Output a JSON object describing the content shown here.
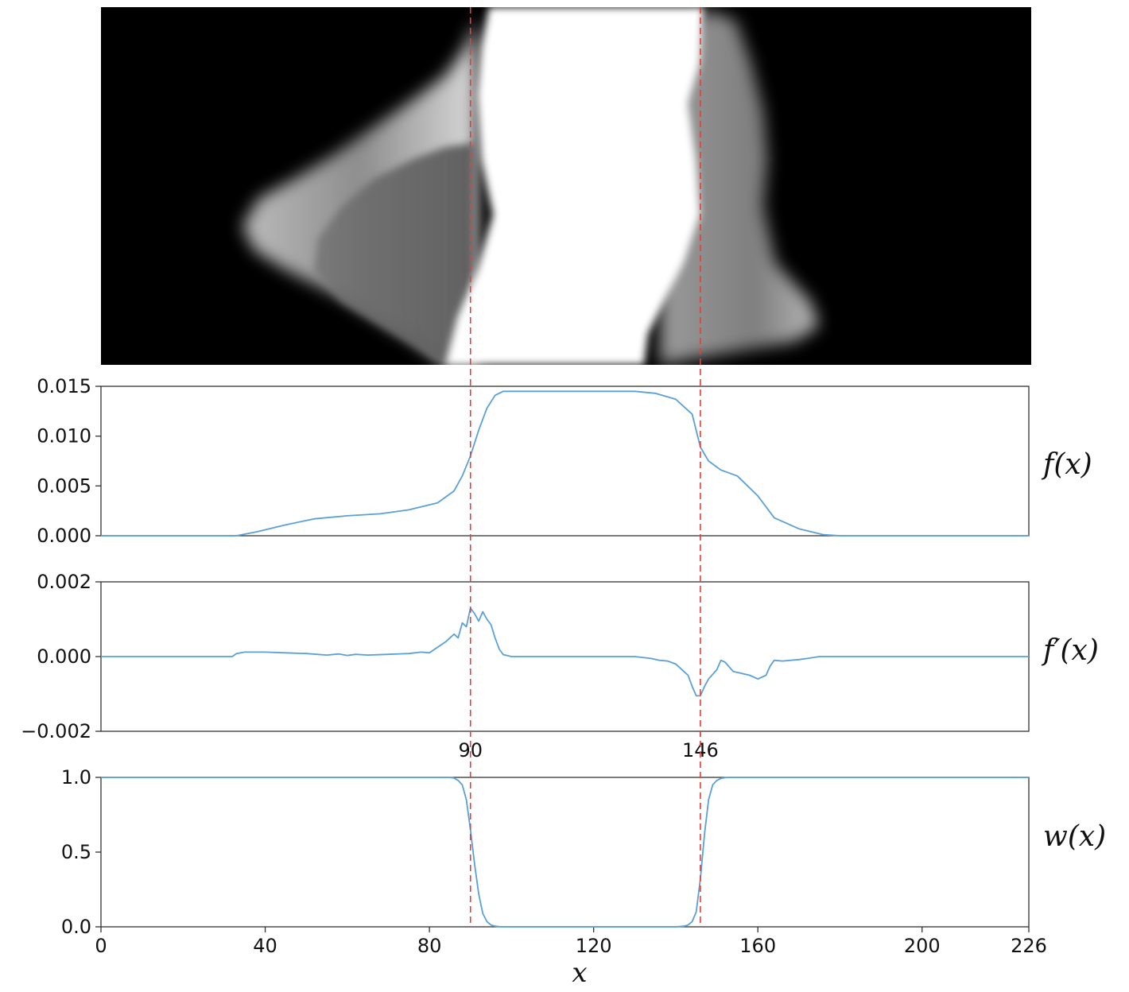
{
  "chart_data": [
    {
      "type": "heatmap",
      "id": "depth-image",
      "title": "",
      "colormap": "grayscale",
      "note": ""
    },
    {
      "type": "line",
      "id": "f",
      "ylabel": "f(x)",
      "xlim": [
        0,
        226
      ],
      "ylim": [
        0,
        0.015
      ],
      "yticks": [
        "0.015",
        "0.010",
        "0.005",
        "0.000"
      ],
      "yticks_values": [
        0.015,
        0.01,
        0.005,
        0.0
      ],
      "series": [
        {
          "x": [
            0,
            33,
            38,
            45,
            52,
            60,
            68,
            75,
            82,
            86,
            88,
            90,
            92,
            94,
            96,
            98,
            100,
            110,
            120,
            130,
            135,
            140,
            144,
            146,
            148,
            151,
            155,
            160,
            164,
            170,
            176,
            180,
            226
          ],
          "y": [
            0,
            0,
            0.0004,
            0.0011,
            0.0017,
            0.002,
            0.0022,
            0.0026,
            0.0033,
            0.0045,
            0.006,
            0.008,
            0.0106,
            0.0128,
            0.0141,
            0.0145,
            0.0145,
            0.0145,
            0.0145,
            0.0145,
            0.0143,
            0.0137,
            0.0122,
            0.0089,
            0.0075,
            0.0066,
            0.006,
            0.004,
            0.0018,
            0.0007,
            0.0001,
            0,
            0
          ]
        }
      ]
    },
    {
      "type": "line",
      "id": "fprime",
      "ylabel": "f′(x)",
      "xlim": [
        0,
        226
      ],
      "ylim": [
        -0.002,
        0.002
      ],
      "yticks": [
        "0.002",
        "0.000",
        "−0.002"
      ],
      "yticks_values": [
        0.002,
        0.0,
        -0.002
      ],
      "series": [
        {
          "x": [
            0,
            32,
            33,
            35,
            40,
            45,
            50,
            55,
            58,
            60,
            62,
            65,
            70,
            75,
            78,
            80,
            82,
            84,
            86,
            87,
            88,
            89,
            90,
            91,
            92,
            93,
            94,
            95,
            96,
            97,
            98,
            100,
            110,
            120,
            130,
            134,
            136,
            138,
            140,
            141,
            142,
            143,
            144,
            145,
            146,
            147,
            148,
            150,
            151,
            152,
            154,
            156,
            158,
            160,
            162,
            163,
            164,
            166,
            170,
            172,
            175,
            226
          ],
          "y": [
            0,
            0,
            8e-05,
            0.00012,
            0.00012,
            0.0001,
            8e-05,
            4e-05,
            7e-05,
            3e-05,
            6e-05,
            4e-05,
            6e-05,
            8e-05,
            0.00012,
            0.0001,
            0.00025,
            0.0004,
            0.0006,
            0.0005,
            0.0009,
            0.0008,
            0.0013,
            0.00115,
            0.00095,
            0.0012,
            0.001,
            0.00085,
            0.0005,
            0.0002,
            5e-05,
            0,
            0,
            0,
            0,
            -5e-05,
            -0.0001,
            -0.00012,
            -0.0002,
            -0.0003,
            -0.0004,
            -0.0005,
            -0.0008,
            -0.00105,
            -0.00105,
            -0.0008,
            -0.0006,
            -0.00035,
            -0.0001,
            -0.00015,
            -0.0004,
            -0.00045,
            -0.0005,
            -0.0006,
            -0.0005,
            -0.00025,
            -0.0001,
            -0.00012,
            -8e-05,
            -5e-05,
            0,
            0
          ]
        }
      ],
      "xticks": [
        "90",
        "146"
      ],
      "xticks_values": [
        90,
        146
      ]
    },
    {
      "type": "line",
      "id": "w",
      "ylabel": "w(x)",
      "xlabel": "x",
      "xlim": [
        0,
        226
      ],
      "ylim": [
        0,
        1.0
      ],
      "yticks": [
        "1.0",
        "0.5",
        "0.0"
      ],
      "yticks_values": [
        1.0,
        0.5,
        0.0
      ],
      "xticks": [
        "0",
        "40",
        "80",
        "120",
        "160",
        "200",
        "226"
      ],
      "xticks_values": [
        0,
        40,
        80,
        120,
        160,
        200,
        226
      ],
      "series": [
        {
          "x": [
            0,
            85,
            86,
            87,
            88,
            89,
            90,
            91,
            92,
            93,
            94,
            95,
            96,
            97,
            98,
            100,
            140,
            142,
            143,
            144,
            145,
            146,
            147,
            148,
            149,
            150,
            151,
            152,
            153,
            155,
            226
          ],
          "y": [
            1,
            1,
            0.995,
            0.98,
            0.95,
            0.85,
            0.65,
            0.42,
            0.22,
            0.09,
            0.035,
            0.012,
            0.004,
            0.001,
            0,
            0,
            0,
            0.004,
            0.012,
            0.035,
            0.1,
            0.32,
            0.62,
            0.85,
            0.95,
            0.98,
            0.993,
            0.998,
            1,
            1,
            1
          ]
        }
      ]
    }
  ],
  "markers": {
    "vertical_lines_x": [
      90,
      146
    ],
    "color": "#e0413b"
  }
}
